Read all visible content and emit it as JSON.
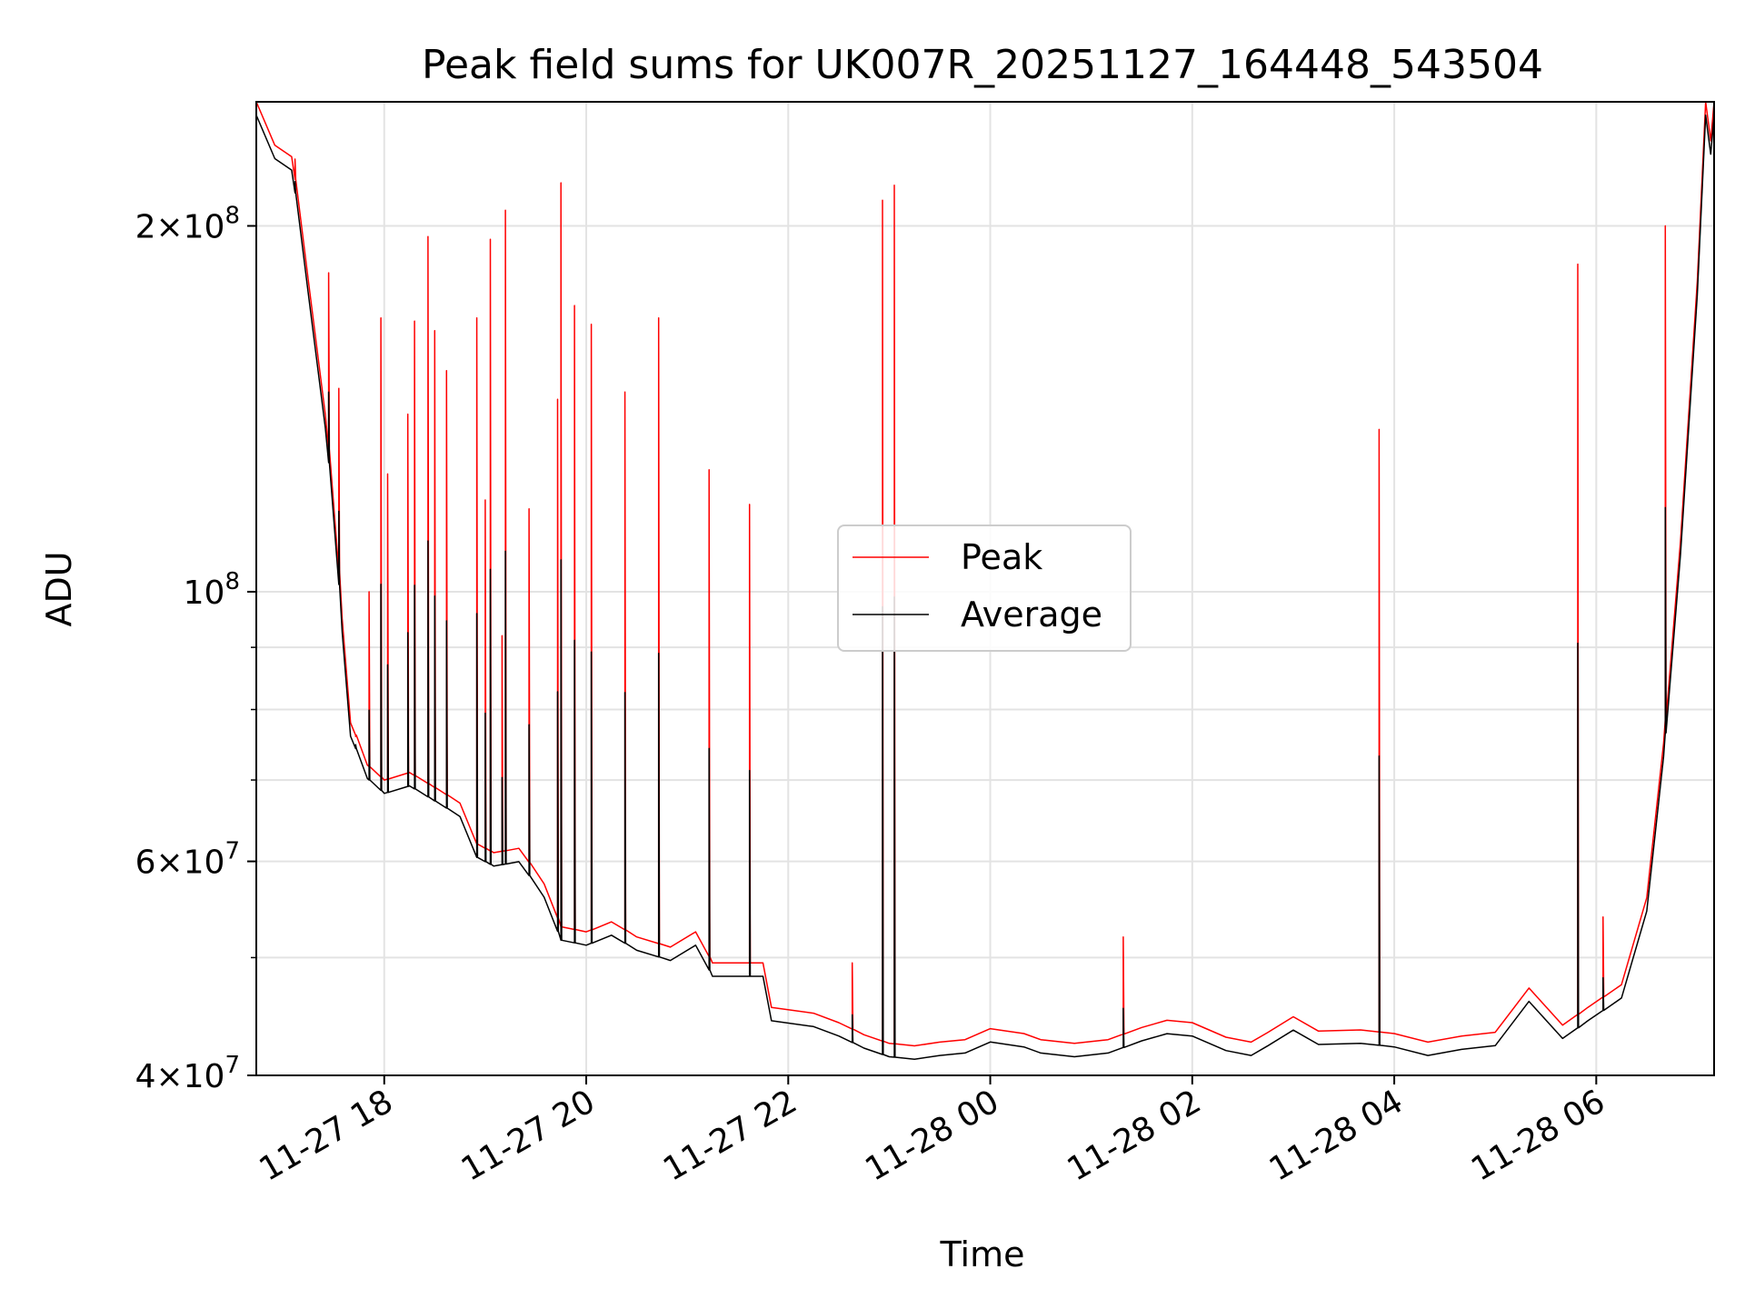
{
  "chart_data": {
    "type": "line",
    "title": "Peak field sums for UK007R_20251127_164448_543504",
    "xlabel": "Time",
    "ylabel": "ADU",
    "yscale": "log",
    "ylim": [
      40000000,
      253000000
    ],
    "xlim": [
      "2025-11-27 16:44",
      "2025-11-28 07:10"
    ],
    "grid": true,
    "legend_position": "center",
    "x_ticks": [
      "2025-11-27 18:00",
      "2025-11-27 20:00",
      "2025-11-27 22:00",
      "2025-11-28 00:00",
      "2025-11-28 02:00",
      "2025-11-28 04:00",
      "2025-11-28 06:00"
    ],
    "x_tick_labels": [
      "11-27 18",
      "11-27 20",
      "11-27 22",
      "11-28 00",
      "11-28 02",
      "11-28 04",
      "11-28 06"
    ],
    "y_major_ticks": [
      {
        "value": 40000000,
        "mantissa": "4",
        "exp": "7"
      },
      {
        "value": 60000000,
        "mantissa": "6",
        "exp": "7"
      },
      {
        "value": 100000000,
        "mantissa": "",
        "exp": "8"
      },
      {
        "value": 200000000,
        "mantissa": "2",
        "exp": "8"
      }
    ],
    "y_minor_ticks": [
      50000000,
      70000000,
      80000000,
      90000000
    ],
    "series": [
      {
        "name": "Peak",
        "color": "#ff0000",
        "baseline": [
          [
            "2025-11-27 16:44",
            253000000
          ],
          [
            "2025-11-27 16:55",
            233000000
          ],
          [
            "2025-11-27 17:05",
            228000000
          ],
          [
            "2025-11-27 17:15",
            180000000
          ],
          [
            "2025-11-27 17:25",
            140000000
          ],
          [
            "2025-11-27 17:35",
            95000000
          ],
          [
            "2025-11-27 17:40",
            78000000
          ],
          [
            "2025-11-27 17:50",
            72000000
          ],
          [
            "2025-11-27 18:00",
            70000000
          ],
          [
            "2025-11-27 18:15",
            71000000
          ],
          [
            "2025-11-27 18:30",
            69000000
          ],
          [
            "2025-11-27 18:45",
            67000000
          ],
          [
            "2025-11-27 18:55",
            62000000
          ],
          [
            "2025-11-27 19:05",
            61000000
          ],
          [
            "2025-11-27 19:20",
            61500000
          ],
          [
            "2025-11-27 19:35",
            57500000
          ],
          [
            "2025-11-27 19:45",
            53000000
          ],
          [
            "2025-11-27 20:00",
            52500000
          ],
          [
            "2025-11-27 20:15",
            53500000
          ],
          [
            "2025-11-27 20:30",
            52000000
          ],
          [
            "2025-11-27 20:50",
            51000000
          ],
          [
            "2025-11-27 21:05",
            52500000
          ],
          [
            "2025-11-27 21:15",
            49500000
          ],
          [
            "2025-11-27 21:30",
            49500000
          ],
          [
            "2025-11-27 21:45",
            49500000
          ],
          [
            "2025-11-27 21:50",
            45500000
          ],
          [
            "2025-11-27 22:15",
            45000000
          ],
          [
            "2025-11-27 22:30",
            44200000
          ],
          [
            "2025-11-27 22:45",
            43200000
          ],
          [
            "2025-11-27 23:00",
            42500000
          ],
          [
            "2025-11-27 23:15",
            42300000
          ],
          [
            "2025-11-27 23:30",
            42600000
          ],
          [
            "2025-11-27 23:45",
            42800000
          ],
          [
            "2025-11-28 00:00",
            43700000
          ],
          [
            "2025-11-28 00:20",
            43300000
          ],
          [
            "2025-11-28 00:30",
            42800000
          ],
          [
            "2025-11-28 00:50",
            42500000
          ],
          [
            "2025-11-28 01:10",
            42800000
          ],
          [
            "2025-11-28 01:30",
            43800000
          ],
          [
            "2025-11-28 01:45",
            44400000
          ],
          [
            "2025-11-28 02:00",
            44200000
          ],
          [
            "2025-11-28 02:20",
            43000000
          ],
          [
            "2025-11-28 02:35",
            42600000
          ],
          [
            "2025-11-28 02:45",
            43400000
          ],
          [
            "2025-11-28 03:00",
            44700000
          ],
          [
            "2025-11-28 03:15",
            43500000
          ],
          [
            "2025-11-28 03:40",
            43600000
          ],
          [
            "2025-11-28 04:00",
            43300000
          ],
          [
            "2025-11-28 04:20",
            42600000
          ],
          [
            "2025-11-28 04:40",
            43100000
          ],
          [
            "2025-11-28 05:00",
            43400000
          ],
          [
            "2025-11-28 05:20",
            47200000
          ],
          [
            "2025-11-28 05:40",
            44000000
          ],
          [
            "2025-11-28 05:55",
            45500000
          ],
          [
            "2025-11-28 06:15",
            47500000
          ],
          [
            "2025-11-28 06:30",
            56000000
          ],
          [
            "2025-11-28 06:40",
            75000000
          ],
          [
            "2025-11-28 06:50",
            110000000
          ],
          [
            "2025-11-28 07:00",
            180000000
          ],
          [
            "2025-11-28 07:05",
            253000000
          ],
          [
            "2025-11-28 07:08",
            235000000
          ],
          [
            "2025-11-28 07:10",
            253000000
          ]
        ],
        "spikes": [
          [
            "2025-11-27 17:07",
            227000000
          ],
          [
            "2025-11-27 17:27",
            183000000
          ],
          [
            "2025-11-27 17:33",
            147000000
          ],
          [
            "2025-11-27 17:43",
            76000000
          ],
          [
            "2025-11-27 17:51",
            100000000
          ],
          [
            "2025-11-27 17:58",
            168000000
          ],
          [
            "2025-11-27 18:02",
            125000000
          ],
          [
            "2025-11-27 18:14",
            140000000
          ],
          [
            "2025-11-27 18:18",
            167000000
          ],
          [
            "2025-11-27 18:26",
            196000000
          ],
          [
            "2025-11-27 18:30",
            164000000
          ],
          [
            "2025-11-27 18:37",
            152000000
          ],
          [
            "2025-11-27 18:55",
            168000000
          ],
          [
            "2025-11-27 19:00",
            119000000
          ],
          [
            "2025-11-27 19:03",
            195000000
          ],
          [
            "2025-11-27 19:10",
            92000000
          ],
          [
            "2025-11-27 19:12",
            206000000
          ],
          [
            "2025-11-27 19:26",
            117000000
          ],
          [
            "2025-11-27 19:43",
            144000000
          ],
          [
            "2025-11-27 19:45",
            217000000
          ],
          [
            "2025-11-27 19:53",
            172000000
          ],
          [
            "2025-11-27 20:03",
            166000000
          ],
          [
            "2025-11-27 20:23",
            146000000
          ],
          [
            "2025-11-27 20:43",
            168000000
          ],
          [
            "2025-11-27 21:13",
            126000000
          ],
          [
            "2025-11-27 21:37",
            118000000
          ],
          [
            "2025-11-27 22:38",
            49500000
          ],
          [
            "2025-11-27 22:56",
            210000000
          ],
          [
            "2025-11-27 23:03",
            216000000
          ],
          [
            "2025-11-28 01:19",
            52000000
          ],
          [
            "2025-11-28 03:51",
            136000000
          ],
          [
            "2025-11-28 05:49",
            186000000
          ],
          [
            "2025-11-28 06:04",
            54000000
          ],
          [
            "2025-11-28 06:41",
            200000000
          ]
        ]
      },
      {
        "name": "Average",
        "color": "#000000",
        "offset_ratio": 0.975,
        "spike_ratio": 0.33
      }
    ]
  }
}
